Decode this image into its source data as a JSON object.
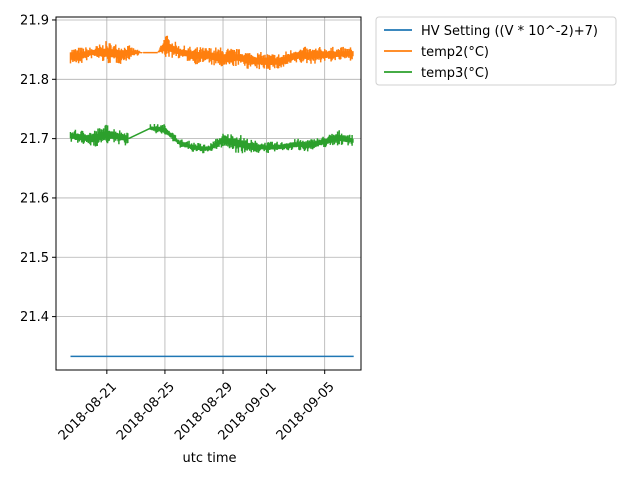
{
  "chart_data": {
    "type": "line",
    "title": "",
    "xlabel": "utc time",
    "ylabel": "",
    "x_range": [
      "2018-08-17T12:00",
      "2018-09-07T12:00"
    ],
    "ylim": [
      21.31,
      21.905
    ],
    "grid": true,
    "legend_position": "outside top-right",
    "x_ticks": [
      "2018-08-21",
      "2018-08-25",
      "2018-08-29",
      "2018-09-01",
      "2018-09-05"
    ],
    "y_ticks": [
      "21.4",
      "21.5",
      "21.6",
      "21.7",
      "21.8",
      "21.9"
    ],
    "series": [
      {
        "name": "HV Setting ((V * 10^-2)+7)",
        "color": "#1f77b4",
        "points": [
          [
            "2018-08-18T12:00",
            21.333
          ],
          [
            "2018-09-07T00:00",
            21.333
          ]
        ]
      },
      {
        "name": "temp2(°C)",
        "color": "#ff7f0e",
        "band": [
          [
            "2018-08-18T12:00",
            21.825,
            21.855
          ],
          [
            "2018-08-19T00:00",
            21.822,
            21.855
          ],
          [
            "2018-08-20T00:00",
            21.835,
            21.855
          ],
          [
            "2018-08-21T00:00",
            21.825,
            21.865
          ],
          [
            "2018-08-22T00:00",
            21.825,
            21.86
          ],
          [
            "2018-08-22T12:00",
            21.832,
            21.858
          ],
          [
            "2018-08-23T12:00",
            21.845,
            21.845
          ],
          [
            "2018-08-24T12:00",
            21.845,
            21.845
          ],
          [
            "2018-08-25T00:00",
            21.835,
            21.878
          ],
          [
            "2018-08-26T00:00",
            21.835,
            21.858
          ],
          [
            "2018-08-27T00:00",
            21.825,
            21.855
          ],
          [
            "2018-08-28T00:00",
            21.825,
            21.855
          ],
          [
            "2018-08-29T00:00",
            21.815,
            21.855
          ],
          [
            "2018-08-30T00:00",
            21.822,
            21.852
          ],
          [
            "2018-08-31T00:00",
            21.815,
            21.848
          ],
          [
            "2018-09-01T00:00",
            21.815,
            21.845
          ],
          [
            "2018-09-02T00:00",
            21.815,
            21.845
          ],
          [
            "2018-09-03T00:00",
            21.825,
            21.855
          ],
          [
            "2018-09-04T00:00",
            21.825,
            21.855
          ],
          [
            "2018-09-05T00:00",
            21.828,
            21.855
          ],
          [
            "2018-09-06T00:00",
            21.83,
            21.855
          ],
          [
            "2018-09-07T00:00",
            21.832,
            21.855
          ]
        ]
      },
      {
        "name": "temp3(°C)",
        "color": "#2ca02c",
        "band": [
          [
            "2018-08-18T12:00",
            21.695,
            21.715
          ],
          [
            "2018-08-19T00:00",
            21.69,
            21.715
          ],
          [
            "2018-08-20T00:00",
            21.685,
            21.715
          ],
          [
            "2018-08-21T00:00",
            21.69,
            21.725
          ],
          [
            "2018-08-22T00:00",
            21.69,
            21.715
          ],
          [
            "2018-08-22T12:00",
            21.685,
            21.715
          ],
          [
            "2018-08-24T00:00",
            21.71,
            21.725
          ],
          [
            "2018-08-25T00:00",
            21.705,
            21.725
          ],
          [
            "2018-08-26T00:00",
            21.685,
            21.7
          ],
          [
            "2018-08-27T00:00",
            21.675,
            21.695
          ],
          [
            "2018-08-28T00:00",
            21.675,
            21.69
          ],
          [
            "2018-08-29T00:00",
            21.685,
            21.71
          ],
          [
            "2018-08-30T00:00",
            21.675,
            21.71
          ],
          [
            "2018-08-31T00:00",
            21.675,
            21.698
          ],
          [
            "2018-09-01T00:00",
            21.675,
            21.695
          ],
          [
            "2018-09-02T00:00",
            21.678,
            21.695
          ],
          [
            "2018-09-03T00:00",
            21.68,
            21.7
          ],
          [
            "2018-09-04T00:00",
            21.678,
            21.7
          ],
          [
            "2018-09-05T00:00",
            21.685,
            21.705
          ],
          [
            "2018-09-06T00:00",
            21.688,
            21.715
          ],
          [
            "2018-09-07T00:00",
            21.688,
            21.705
          ]
        ]
      }
    ]
  }
}
